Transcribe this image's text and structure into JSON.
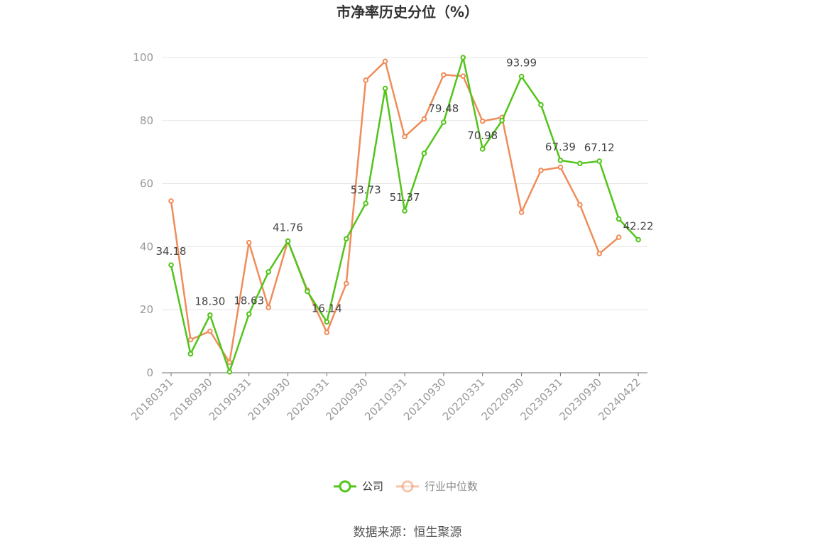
{
  "chart_data": {
    "type": "line",
    "title": "市净率历史分位（%）",
    "source": "数据来源：恒生聚源",
    "ylim": [
      0,
      100
    ],
    "yticks": [
      0,
      20,
      40,
      60,
      80,
      100
    ],
    "x_tick_labels": [
      "20180331",
      "20180930",
      "20190331",
      "20190930",
      "20200331",
      "20200930",
      "20210331",
      "20210930",
      "20220331",
      "20220930",
      "20230331",
      "20230930",
      "20240422"
    ],
    "grid": true,
    "legend_position": "bottom",
    "series": [
      {
        "name": "公司",
        "color": "#52c41a",
        "values": [
          34.18,
          6.0,
          18.3,
          0.3,
          18.63,
          32.0,
          41.76,
          25.8,
          16.14,
          42.5,
          53.73,
          90.2,
          51.37,
          69.6,
          79.48,
          100.0,
          70.98,
          80.0,
          93.99,
          85.0,
          67.39,
          66.4,
          67.12,
          48.8,
          42.22
        ],
        "labels": {
          "0": "34.18",
          "2": "18.30",
          "4": "18.63",
          "6": "41.76",
          "8": "16.14",
          "10": "53.73",
          "12": "51.37",
          "14": "79.48",
          "16": "70.98",
          "18": "93.99",
          "20": "67.39",
          "22": "67.12",
          "24": "42.22"
        }
      },
      {
        "name": "行业中位数",
        "color": "#f08c5a",
        "values": [
          54.5,
          10.5,
          13.2,
          3.3,
          41.3,
          20.7,
          41.8,
          26.2,
          12.8,
          28.3,
          92.8,
          98.8,
          74.9,
          80.5,
          94.5,
          94.1,
          79.8,
          81.0,
          50.9,
          64.2,
          65.2,
          53.3,
          37.8,
          43.0,
          null
        ]
      }
    ]
  }
}
